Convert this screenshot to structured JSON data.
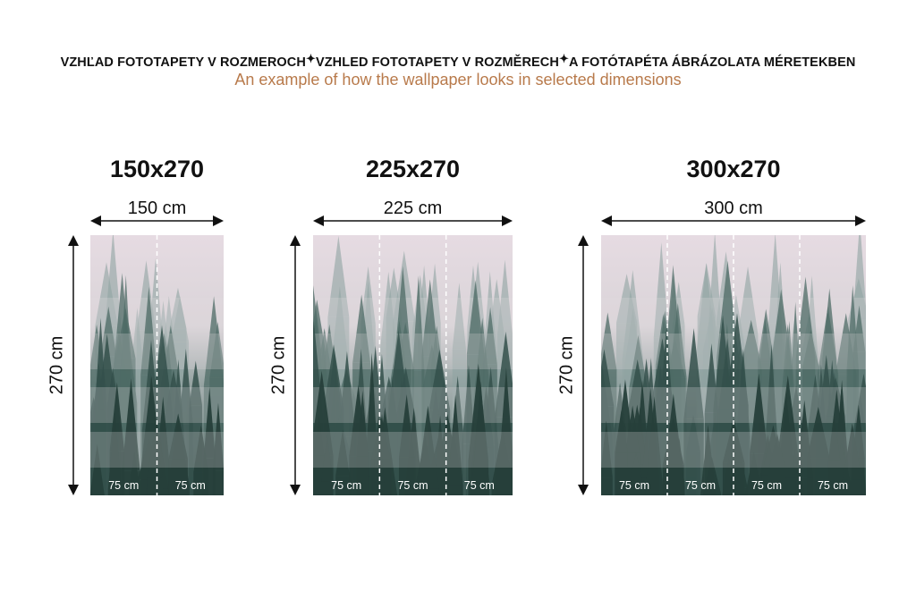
{
  "header": {
    "line_parts": [
      "VZHĽAD FOTOTAPETY V ROZMEROCH",
      "VZHLED FOTOTAPETY V ROZMĚRECH",
      "A FOTÓTAPÉTA ÁBRÁZOLATA MÉRETEKBEN"
    ],
    "separator_icon": "sparkle-icon",
    "subtitle": "An example of how the wallpaper looks in selected dimensions",
    "subtitle_color": "#b87a4b"
  },
  "panels": [
    {
      "title": "150x270",
      "width_label": "150 cm",
      "height_label": "270 cm",
      "segments": [
        "75 cm",
        "75 cm"
      ]
    },
    {
      "title": "225x270",
      "width_label": "225 cm",
      "height_label": "270 cm",
      "segments": [
        "75 cm",
        "75 cm",
        "75 cm"
      ]
    },
    {
      "title": "300x270",
      "width_label": "300 cm",
      "height_label": "270 cm",
      "segments": [
        "75 cm",
        "75 cm",
        "75 cm",
        "75 cm"
      ]
    }
  ]
}
